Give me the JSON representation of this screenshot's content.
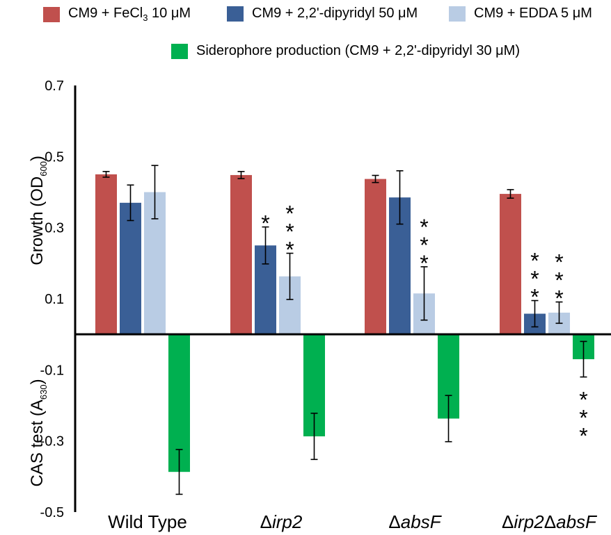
{
  "legend": [
    {
      "prefix": "CM9 + FeCl",
      "sub": "3",
      "suffix": " 10 μM",
      "color": "#c0504d"
    },
    {
      "prefix": "CM9 + 2,2'-dipyridyl 50 μM",
      "sub": "",
      "suffix": "",
      "color": "#3a5f96"
    },
    {
      "prefix": "CM9 + EDDA 5 μM",
      "sub": "",
      "suffix": "",
      "color": "#b9cce4"
    },
    {
      "prefix": "Siderophore production (CM9 + 2,2'-dipyridyl 30 μM)",
      "sub": "",
      "suffix": "",
      "color": "#00b050"
    }
  ],
  "axes": {
    "growth_prefix": "Growth (OD",
    "growth_sub": "600",
    "growth_suffix": ")",
    "cas_prefix": "CAS test (A",
    "cas_sub": "630",
    "cas_suffix": ")"
  },
  "chart_data": {
    "type": "bar",
    "categories": [
      {
        "plain": "Wild Type",
        "parts": [
          {
            "t": "Wild Type",
            "i": false
          }
        ]
      },
      {
        "plain": "Δirp2",
        "parts": [
          {
            "t": "Δ",
            "i": false
          },
          {
            "t": "irp2",
            "i": true
          }
        ]
      },
      {
        "plain": "ΔabsF",
        "parts": [
          {
            "t": "Δ",
            "i": false
          },
          {
            "t": "absF",
            "i": true
          }
        ]
      },
      {
        "plain": "Δirp2ΔabsF",
        "parts": [
          {
            "t": "Δ",
            "i": false
          },
          {
            "t": "irp2",
            "i": true
          },
          {
            "t": "Δ",
            "i": false
          },
          {
            "t": "absF",
            "i": true
          }
        ]
      }
    ],
    "ylim": [
      -0.5,
      0.7
    ],
    "yticks": [
      -0.5,
      -0.3,
      -0.1,
      0.1,
      0.3,
      0.5,
      0.7
    ],
    "ytick_labels": [
      "-0.5",
      "-0.3",
      "-0.1",
      "0.1",
      "0.3",
      "0.5",
      "0.7"
    ],
    "series": [
      {
        "name": "CM9 + FeCl3 10 μM",
        "color": "#c0504d",
        "values": [
          0.45,
          0.448,
          0.437,
          0.395
        ],
        "errors": [
          0.008,
          0.01,
          0.01,
          0.012
        ],
        "significance": [
          "",
          "",
          "",
          ""
        ]
      },
      {
        "name": "CM9 + 2,2'-dipyridyl 50 μM",
        "color": "#3a5f96",
        "values": [
          0.37,
          0.25,
          0.385,
          0.058
        ],
        "errors": [
          0.05,
          0.052,
          0.075,
          0.037
        ],
        "significance": [
          "",
          "*",
          "",
          "***"
        ]
      },
      {
        "name": "CM9 + EDDA 5 μM",
        "color": "#b9cce4",
        "values": [
          0.4,
          0.163,
          0.115,
          0.061
        ],
        "errors": [
          0.075,
          0.065,
          0.075,
          0.03
        ],
        "significance": [
          "",
          "***",
          "***",
          "***"
        ]
      },
      {
        "name": "Siderophore production (CM9 + 2,2'-dipyridyl 30 μM)",
        "color": "#00b050",
        "values": [
          -0.387,
          -0.287,
          -0.237,
          -0.07
        ],
        "errors": [
          0.063,
          0.065,
          0.065,
          0.05
        ],
        "significance": [
          "",
          "",
          "",
          "***"
        ]
      }
    ]
  }
}
